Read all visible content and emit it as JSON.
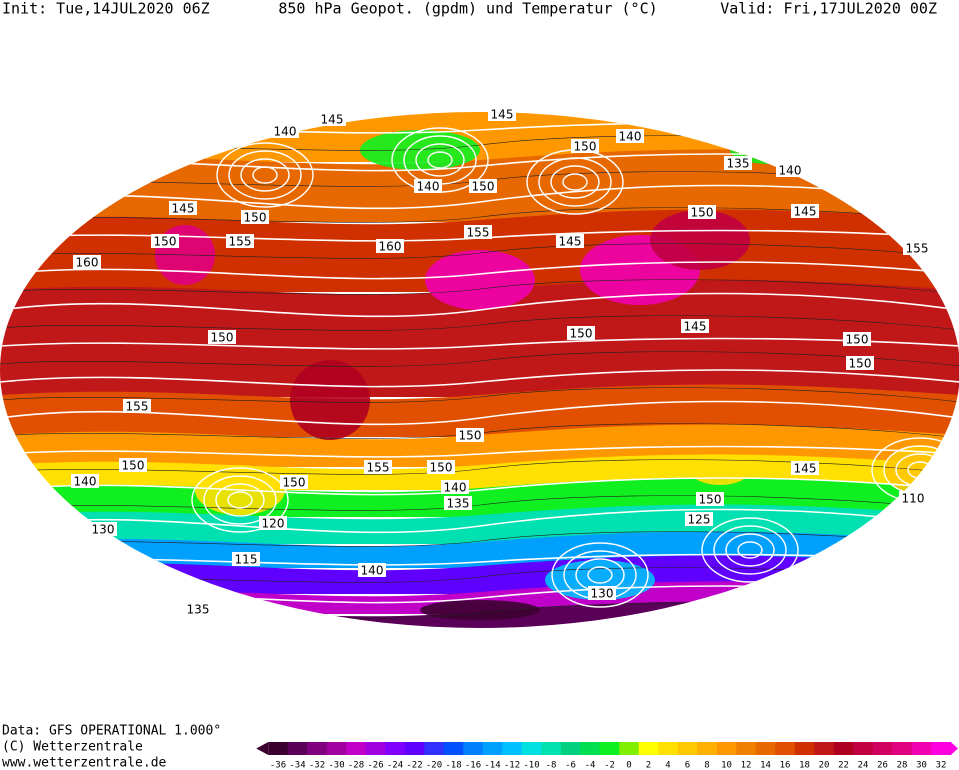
{
  "header": {
    "init": "Init: Tue,14JUL2020 06Z",
    "title": "850 hPa Geopot. (gpdm) und Temperatur (°C)",
    "valid": "Valid: Fri,17JUL2020 00Z"
  },
  "footer": {
    "data": "Data: GFS OPERATIONAL 1.000°",
    "copyright": "(C) Wetterzentrale",
    "url": "www.wetterzentrale.de"
  },
  "contour_labels": [
    145,
    145,
    150,
    140,
    140,
    150,
    145,
    140,
    135,
    140,
    145,
    150,
    155,
    155,
    160,
    150,
    160,
    155,
    145,
    150,
    145,
    150,
    150,
    150,
    150,
    155,
    150,
    155,
    150,
    150,
    140,
    135,
    150,
    140,
    145,
    150,
    130,
    120,
    115,
    125,
    110,
    140,
    130,
    135
  ],
  "colorbar": {
    "ticks": [
      -36,
      -34,
      -32,
      -30,
      -28,
      -26,
      -24,
      -22,
      -20,
      -18,
      -16,
      -14,
      -12,
      -10,
      -8,
      -6,
      -4,
      -2,
      0,
      2,
      4,
      6,
      8,
      10,
      12,
      14,
      16,
      18,
      20,
      22,
      24,
      26,
      28,
      30,
      32
    ],
    "colors": [
      "#3c0030",
      "#5a0058",
      "#800080",
      "#a000a0",
      "#c000c8",
      "#a000e0",
      "#8000ff",
      "#6000ff",
      "#3030ff",
      "#0050ff",
      "#0080ff",
      "#00a0ff",
      "#00c0ff",
      "#00e0e0",
      "#00e0b0",
      "#00d080",
      "#00e050",
      "#10f020",
      "#80f000",
      "#ffff00",
      "#ffe000",
      "#ffc800",
      "#ffb000",
      "#ff9800",
      "#f08000",
      "#e86800",
      "#e05000",
      "#d03000",
      "#c01818",
      "#b00020",
      "#c00040",
      "#d00060",
      "#e00080",
      "#f000b0",
      "#ff00e0"
    ]
  }
}
